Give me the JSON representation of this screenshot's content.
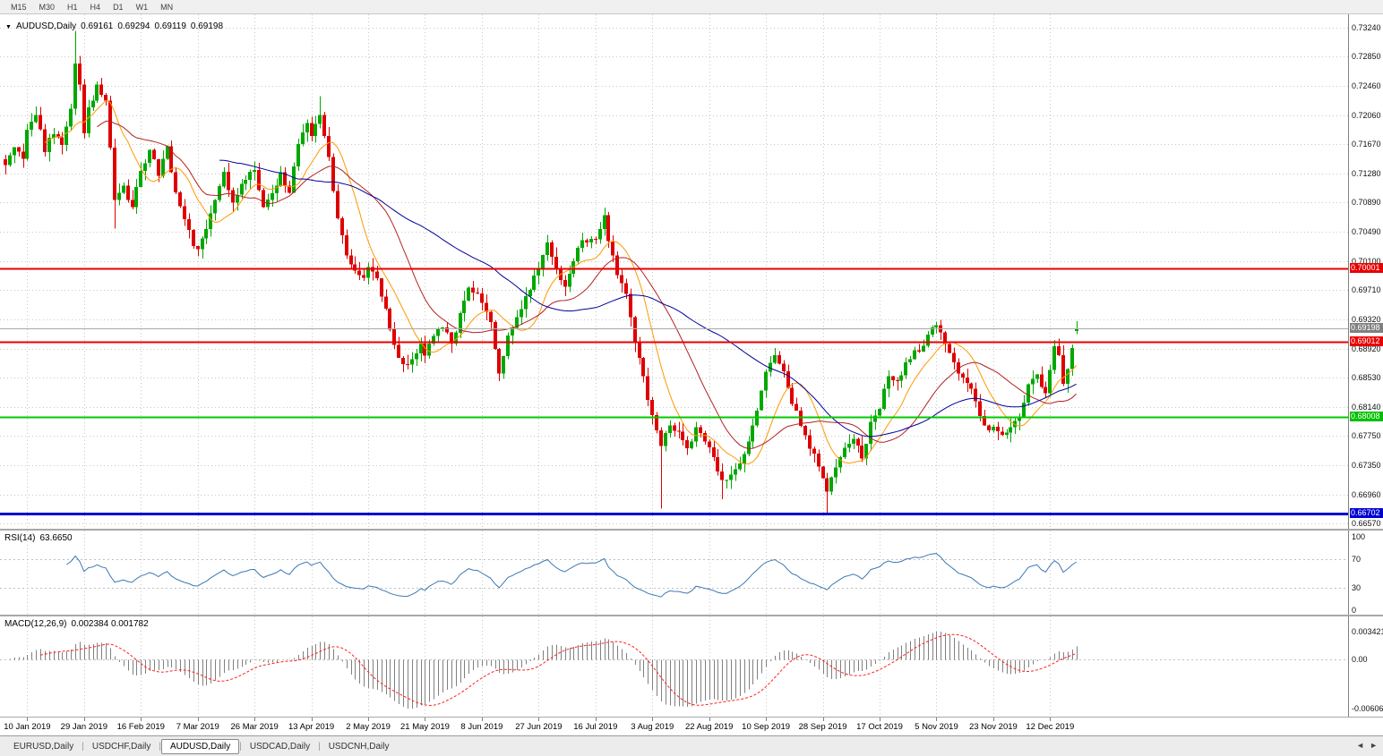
{
  "toolbar": {
    "timeframes": [
      "M15",
      "M30",
      "H1",
      "H4",
      "D1",
      "W1",
      "MN"
    ]
  },
  "chart_header": {
    "marker": "▼",
    "symbol": "AUDUSD,Daily",
    "open": "0.69161",
    "high": "0.69294",
    "low": "0.69119",
    "close": "0.69198"
  },
  "price_scale": {
    "ticks": [
      "0.73240",
      "0.72850",
      "0.72460",
      "0.72060",
      "0.71670",
      "0.71280",
      "0.70890",
      "0.70490",
      "0.70100",
      "0.69710",
      "0.69320",
      "0.68920",
      "0.68530",
      "0.68140",
      "0.67750",
      "0.67350",
      "0.66960",
      "0.66570"
    ]
  },
  "price_tags": [
    {
      "label": "0.70001",
      "price": 0.70001,
      "bg": "#e80000"
    },
    {
      "label": "0.69198",
      "price": 0.69198,
      "bg": "#808080"
    },
    {
      "label": "0.69012",
      "price": 0.69012,
      "bg": "#e80000"
    },
    {
      "label": "0.68008",
      "price": 0.68008,
      "bg": "#00c000"
    },
    {
      "label": "0.66702",
      "price": 0.66702,
      "bg": "#0000d0"
    }
  ],
  "hlines": [
    {
      "price": 0.69198,
      "color": "#a9a9a9",
      "width": 1
    },
    {
      "price": 0.70001,
      "color": "#e80000",
      "width": 2
    },
    {
      "price": 0.69012,
      "color": "#e80000",
      "width": 2
    },
    {
      "price": 0.68008,
      "color": "#00c800",
      "width": 2
    },
    {
      "price": 0.66702,
      "color": "#0000d0",
      "width": 3
    }
  ],
  "rsi_panel": {
    "label": "RSI(14)",
    "value": "63.6650",
    "period": 14,
    "scale": [
      100,
      70,
      30,
      0
    ],
    "line_color": "#3c78b4"
  },
  "macd_panel": {
    "label": "MACD(12,26,9)",
    "values": "0.002384 0.001782",
    "fast": 12,
    "slow": 26,
    "signal": 9,
    "scale_top": "0.003421",
    "scale_zero": "0.00",
    "scale_bottom": "-0.006069",
    "hist_color": "#808080",
    "signal_color": "#ff2020"
  },
  "tabbar": {
    "tabs": [
      "EURUSD,Daily",
      "USDCHF,Daily",
      "AUDUSD,Daily",
      "USDCAD,Daily",
      "USDCNH,Daily"
    ],
    "active_index": 2,
    "nav_left": "◄",
    "nav_right": "►"
  },
  "colors": {
    "up": "#00a800",
    "down": "#de0000",
    "grid": "#c8c8c8",
    "rsi_level": "#c0c0c0"
  },
  "chart_data": {
    "type": "candlestick-with-indicators",
    "symbol": "AUDUSD",
    "timeframe": "Daily",
    "bars": 246,
    "seed": 20191226,
    "noise": 0.0009,
    "wick": 0.0013,
    "pmax": 0.7342,
    "pmin": 0.665,
    "mas": [
      {
        "period": 10,
        "color": "#ff9900"
      },
      {
        "period": 22,
        "color": "#b22222"
      },
      {
        "period": 50,
        "color": "#000099"
      }
    ],
    "x_ticks": [
      {
        "bar": 5,
        "label": "10 Jan 2019"
      },
      {
        "bar": 18,
        "label": "29 Jan 2019"
      },
      {
        "bar": 31,
        "label": "16 Feb 2019"
      },
      {
        "bar": 44,
        "label": "7 Mar 2019"
      },
      {
        "bar": 57,
        "label": "26 Mar 2019"
      },
      {
        "bar": 70,
        "label": "13 Apr 2019"
      },
      {
        "bar": 83,
        "label": "2 May 2019"
      },
      {
        "bar": 96,
        "label": "21 May 2019"
      },
      {
        "bar": 109,
        "label": "8 Jun 2019"
      },
      {
        "bar": 122,
        "label": "27 Jun 2019"
      },
      {
        "bar": 135,
        "label": "16 Jul 2019"
      },
      {
        "bar": 148,
        "label": "3 Aug 2019"
      },
      {
        "bar": 161,
        "label": "22 Aug 2019"
      },
      {
        "bar": 174,
        "label": "10 Sep 2019"
      },
      {
        "bar": 187,
        "label": "28 Sep 2019"
      },
      {
        "bar": 200,
        "label": "17 Oct 2019"
      },
      {
        "bar": 213,
        "label": "5 Nov 2019"
      },
      {
        "bar": 226,
        "label": "23 Nov 2019"
      },
      {
        "bar": 239,
        "label": "12 Dec 2019"
      }
    ],
    "price_anchors": [
      [
        0,
        0.714
      ],
      [
        2,
        0.7165
      ],
      [
        4,
        0.715
      ],
      [
        5,
        0.7185
      ],
      [
        7,
        0.721
      ],
      [
        9,
        0.716
      ],
      [
        11,
        0.7185
      ],
      [
        13,
        0.7165
      ],
      [
        15,
        0.7215
      ],
      [
        16,
        0.728
      ],
      [
        17,
        0.725
      ],
      [
        18,
        0.718
      ],
      [
        19,
        0.7215
      ],
      [
        21,
        0.7245
      ],
      [
        23,
        0.7228
      ],
      [
        25,
        0.709
      ],
      [
        27,
        0.7108
      ],
      [
        29,
        0.7085
      ],
      [
        31,
        0.713
      ],
      [
        33,
        0.716
      ],
      [
        35,
        0.7128
      ],
      [
        37,
        0.7165
      ],
      [
        39,
        0.71
      ],
      [
        41,
        0.7068
      ],
      [
        43,
        0.7032
      ],
      [
        44,
        0.7025
      ],
      [
        46,
        0.7055
      ],
      [
        48,
        0.7092
      ],
      [
        50,
        0.7128
      ],
      [
        52,
        0.7085
      ],
      [
        54,
        0.7115
      ],
      [
        57,
        0.7132
      ],
      [
        59,
        0.7085
      ],
      [
        61,
        0.7105
      ],
      [
        63,
        0.7126
      ],
      [
        65,
        0.7105
      ],
      [
        67,
        0.717
      ],
      [
        69,
        0.7196
      ],
      [
        70,
        0.7175
      ],
      [
        72,
        0.7206
      ],
      [
        74,
        0.715
      ],
      [
        76,
        0.7065
      ],
      [
        78,
        0.7018
      ],
      [
        80,
        0.7
      ],
      [
        82,
        0.699
      ],
      [
        83,
        0.7005
      ],
      [
        85,
        0.6985
      ],
      [
        87,
        0.6945
      ],
      [
        89,
        0.6895
      ],
      [
        91,
        0.6868
      ],
      [
        93,
        0.6882
      ],
      [
        95,
        0.6896
      ],
      [
        96,
        0.688
      ],
      [
        98,
        0.6912
      ],
      [
        100,
        0.6922
      ],
      [
        102,
        0.69
      ],
      [
        104,
        0.6936
      ],
      [
        106,
        0.6976
      ],
      [
        108,
        0.6962
      ],
      [
        109,
        0.695
      ],
      [
        111,
        0.693
      ],
      [
        113,
        0.6855
      ],
      [
        115,
        0.6906
      ],
      [
        117,
        0.6936
      ],
      [
        119,
        0.6962
      ],
      [
        121,
        0.699
      ],
      [
        122,
        0.7002
      ],
      [
        124,
        0.7036
      ],
      [
        126,
        0.6996
      ],
      [
        128,
        0.698
      ],
      [
        130,
        0.7012
      ],
      [
        132,
        0.7036
      ],
      [
        135,
        0.7042
      ],
      [
        137,
        0.7072
      ],
      [
        138,
        0.704
      ],
      [
        140,
        0.699
      ],
      [
        142,
        0.697
      ],
      [
        144,
        0.69
      ],
      [
        146,
        0.6852
      ],
      [
        148,
        0.68
      ],
      [
        150,
        0.6762
      ],
      [
        152,
        0.679
      ],
      [
        154,
        0.678
      ],
      [
        156,
        0.6755
      ],
      [
        158,
        0.6786
      ],
      [
        160,
        0.677
      ],
      [
        161,
        0.676
      ],
      [
        163,
        0.673
      ],
      [
        164,
        0.6716
      ],
      [
        166,
        0.6722
      ],
      [
        168,
        0.6736
      ],
      [
        170,
        0.677
      ],
      [
        172,
        0.6806
      ],
      [
        174,
        0.686
      ],
      [
        176,
        0.6882
      ],
      [
        178,
        0.6865
      ],
      [
        180,
        0.682
      ],
      [
        182,
        0.679
      ],
      [
        184,
        0.676
      ],
      [
        186,
        0.6736
      ],
      [
        188,
        0.67
      ],
      [
        190,
        0.673
      ],
      [
        192,
        0.6756
      ],
      [
        194,
        0.677
      ],
      [
        196,
        0.6746
      ],
      [
        198,
        0.679
      ],
      [
        200,
        0.6816
      ],
      [
        202,
        0.6856
      ],
      [
        204,
        0.685
      ],
      [
        206,
        0.687
      ],
      [
        208,
        0.6886
      ],
      [
        210,
        0.6896
      ],
      [
        212,
        0.692
      ],
      [
        213,
        0.6926
      ],
      [
        215,
        0.69
      ],
      [
        217,
        0.687
      ],
      [
        219,
        0.6856
      ],
      [
        221,
        0.684
      ],
      [
        223,
        0.68
      ],
      [
        225,
        0.6786
      ],
      [
        226,
        0.679
      ],
      [
        228,
        0.6776
      ],
      [
        230,
        0.6786
      ],
      [
        232,
        0.68
      ],
      [
        234,
        0.684
      ],
      [
        236,
        0.6856
      ],
      [
        238,
        0.683
      ],
      [
        239,
        0.6862
      ],
      [
        240,
        0.6896
      ],
      [
        241,
        0.688
      ],
      [
        242,
        0.6846
      ],
      [
        243,
        0.6862
      ],
      [
        244,
        0.6892
      ],
      [
        245,
        0.69198
      ]
    ],
    "overrides": {
      "16": {
        "h": 0.732
      },
      "25": {
        "l": 0.7054
      },
      "72": {
        "h": 0.7232
      },
      "137": {
        "h": 0.7082
      },
      "150": {
        "l": 0.6677
      },
      "164": {
        "l": 0.669
      },
      "188": {
        "l": 0.667
      },
      "245": {
        "o": 0.69161,
        "h": 0.69294,
        "l": 0.69119,
        "c": 0.69198
      }
    }
  }
}
